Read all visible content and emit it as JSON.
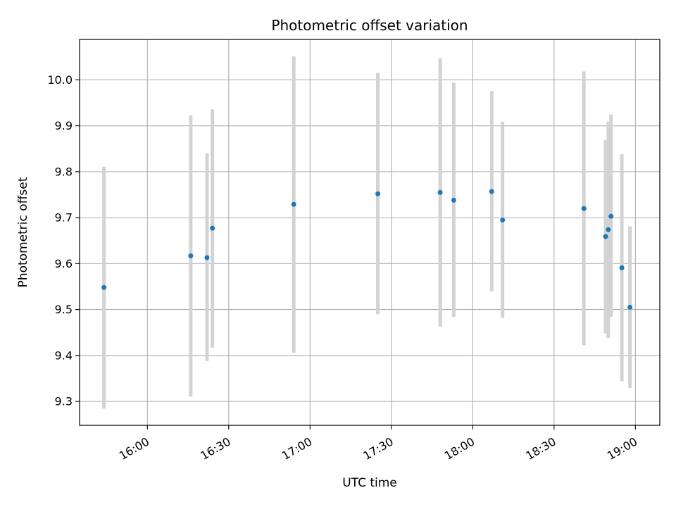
{
  "chart_data": {
    "type": "scatter",
    "title": "Photometric offset variation",
    "xlabel": "UTC time",
    "ylabel": "Photometric offset",
    "x_axis_type": "time",
    "xlim": [
      "15:35",
      "19:09"
    ],
    "ylim": [
      9.248,
      10.088
    ],
    "x_ticks": [
      "16:00",
      "16:30",
      "17:00",
      "17:30",
      "18:00",
      "18:30",
      "19:00"
    ],
    "y_ticks": [
      9.3,
      9.4,
      9.5,
      9.6,
      9.7,
      9.8,
      9.9,
      10.0
    ],
    "y_tick_labels": [
      "9.3",
      "9.4",
      "9.5",
      "9.6",
      "9.7",
      "9.8",
      "9.9",
      "10.0"
    ],
    "grid": true,
    "point_color": "#1f77b4",
    "errorbar_color": "#d3d3d3",
    "series": [
      {
        "points": [
          {
            "x": "15:44",
            "y": 9.548,
            "lo": 9.284,
            "hi": 9.811
          },
          {
            "x": "16:16",
            "y": 9.617,
            "lo": 9.311,
            "hi": 9.923
          },
          {
            "x": "16:22",
            "y": 9.613,
            "lo": 9.388,
            "hi": 9.84
          },
          {
            "x": "16:24",
            "y": 9.677,
            "lo": 9.417,
            "hi": 9.936
          },
          {
            "x": "16:54",
            "y": 9.729,
            "lo": 9.406,
            "hi": 10.051
          },
          {
            "x": "17:25",
            "y": 9.752,
            "lo": 9.49,
            "hi": 10.015
          },
          {
            "x": "17:48",
            "y": 9.755,
            "lo": 9.463,
            "hi": 10.047
          },
          {
            "x": "17:53",
            "y": 9.738,
            "lo": 9.484,
            "hi": 9.994
          },
          {
            "x": "18:07",
            "y": 9.757,
            "lo": 9.54,
            "hi": 9.976
          },
          {
            "x": "18:11",
            "y": 9.695,
            "lo": 9.482,
            "hi": 9.909
          },
          {
            "x": "18:41",
            "y": 9.72,
            "lo": 9.422,
            "hi": 10.018
          },
          {
            "x": "18:49",
            "y": 9.659,
            "lo": 9.448,
            "hi": 9.869
          },
          {
            "x": "18:50",
            "y": 9.674,
            "lo": 9.438,
            "hi": 9.909
          },
          {
            "x": "18:51",
            "y": 9.703,
            "lo": 9.484,
            "hi": 9.925
          },
          {
            "x": "18:55",
            "y": 9.591,
            "lo": 9.344,
            "hi": 9.838
          },
          {
            "x": "18:58",
            "y": 9.505,
            "lo": 9.329,
            "hi": 9.681
          }
        ]
      }
    ]
  }
}
